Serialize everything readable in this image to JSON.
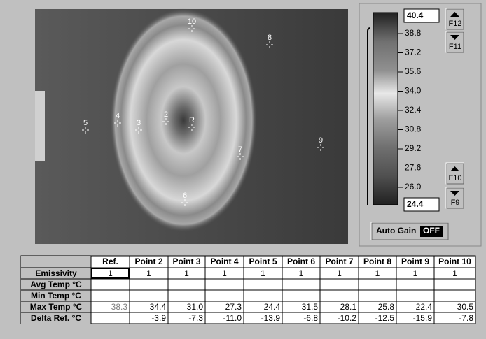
{
  "image": {
    "markers": [
      "10",
      "8",
      "4",
      "2",
      "5",
      "3",
      "R",
      "7",
      "9",
      "6"
    ]
  },
  "scale": {
    "max": "40.4",
    "min": "24.4",
    "labels": [
      "38.8",
      "37.2",
      "35.6",
      "34.0",
      "32.4",
      "30.8",
      "29.2",
      "27.6",
      "26.0"
    ],
    "buttons": [
      "F12",
      "F11",
      "F10",
      "F9"
    ],
    "auto_gain": {
      "label": "Auto Gain",
      "state": "OFF"
    }
  },
  "table": {
    "columns": [
      "Ref.",
      "Point 2",
      "Point 3",
      "Point 4",
      "Point 5",
      "Point 6",
      "Point 7",
      "Point 8",
      "Point 9",
      "Point 10"
    ],
    "rows": [
      {
        "label": "Emissivity",
        "cells": [
          "1",
          "1",
          "1",
          "1",
          "1",
          "1",
          "1",
          "1",
          "1",
          "1"
        ]
      },
      {
        "label": "Avg Temp °C",
        "cells": [
          null,
          null,
          null,
          null,
          null,
          null,
          null,
          null,
          null,
          null
        ]
      },
      {
        "label": "Min Temp °C",
        "cells": [
          null,
          null,
          null,
          null,
          null,
          null,
          null,
          null,
          null,
          null
        ]
      },
      {
        "label": "Max Temp °C",
        "cells": [
          "38.3",
          "34.4",
          "31.0",
          "27.3",
          "24.4",
          "31.5",
          "28.1",
          "25.8",
          "22.4",
          "30.5"
        ]
      },
      {
        "label": "Delta Ref. °C",
        "cells": [
          null,
          "-3.9",
          "-7.3",
          "-11.0",
          "-13.9",
          "-6.8",
          "-10.2",
          "-12.5",
          "-15.9",
          "-7.8"
        ]
      }
    ]
  }
}
